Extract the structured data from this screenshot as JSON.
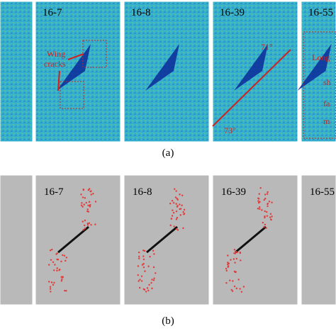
{
  "panel_a": {
    "labels": [
      "16-7",
      "16-8",
      "16-39",
      "16-55"
    ],
    "wing_cracks": [
      "Wing",
      "cracks"
    ],
    "angle_upper": "71°",
    "angle_lower": "73°",
    "cut_text": [
      "Long",
      "sh",
      "fa",
      "m"
    ],
    "caption": "(a)"
  },
  "panel_b": {
    "labels": [
      "16-7",
      "16-8",
      "16-39",
      "16-55"
    ],
    "caption": "(b)"
  }
}
